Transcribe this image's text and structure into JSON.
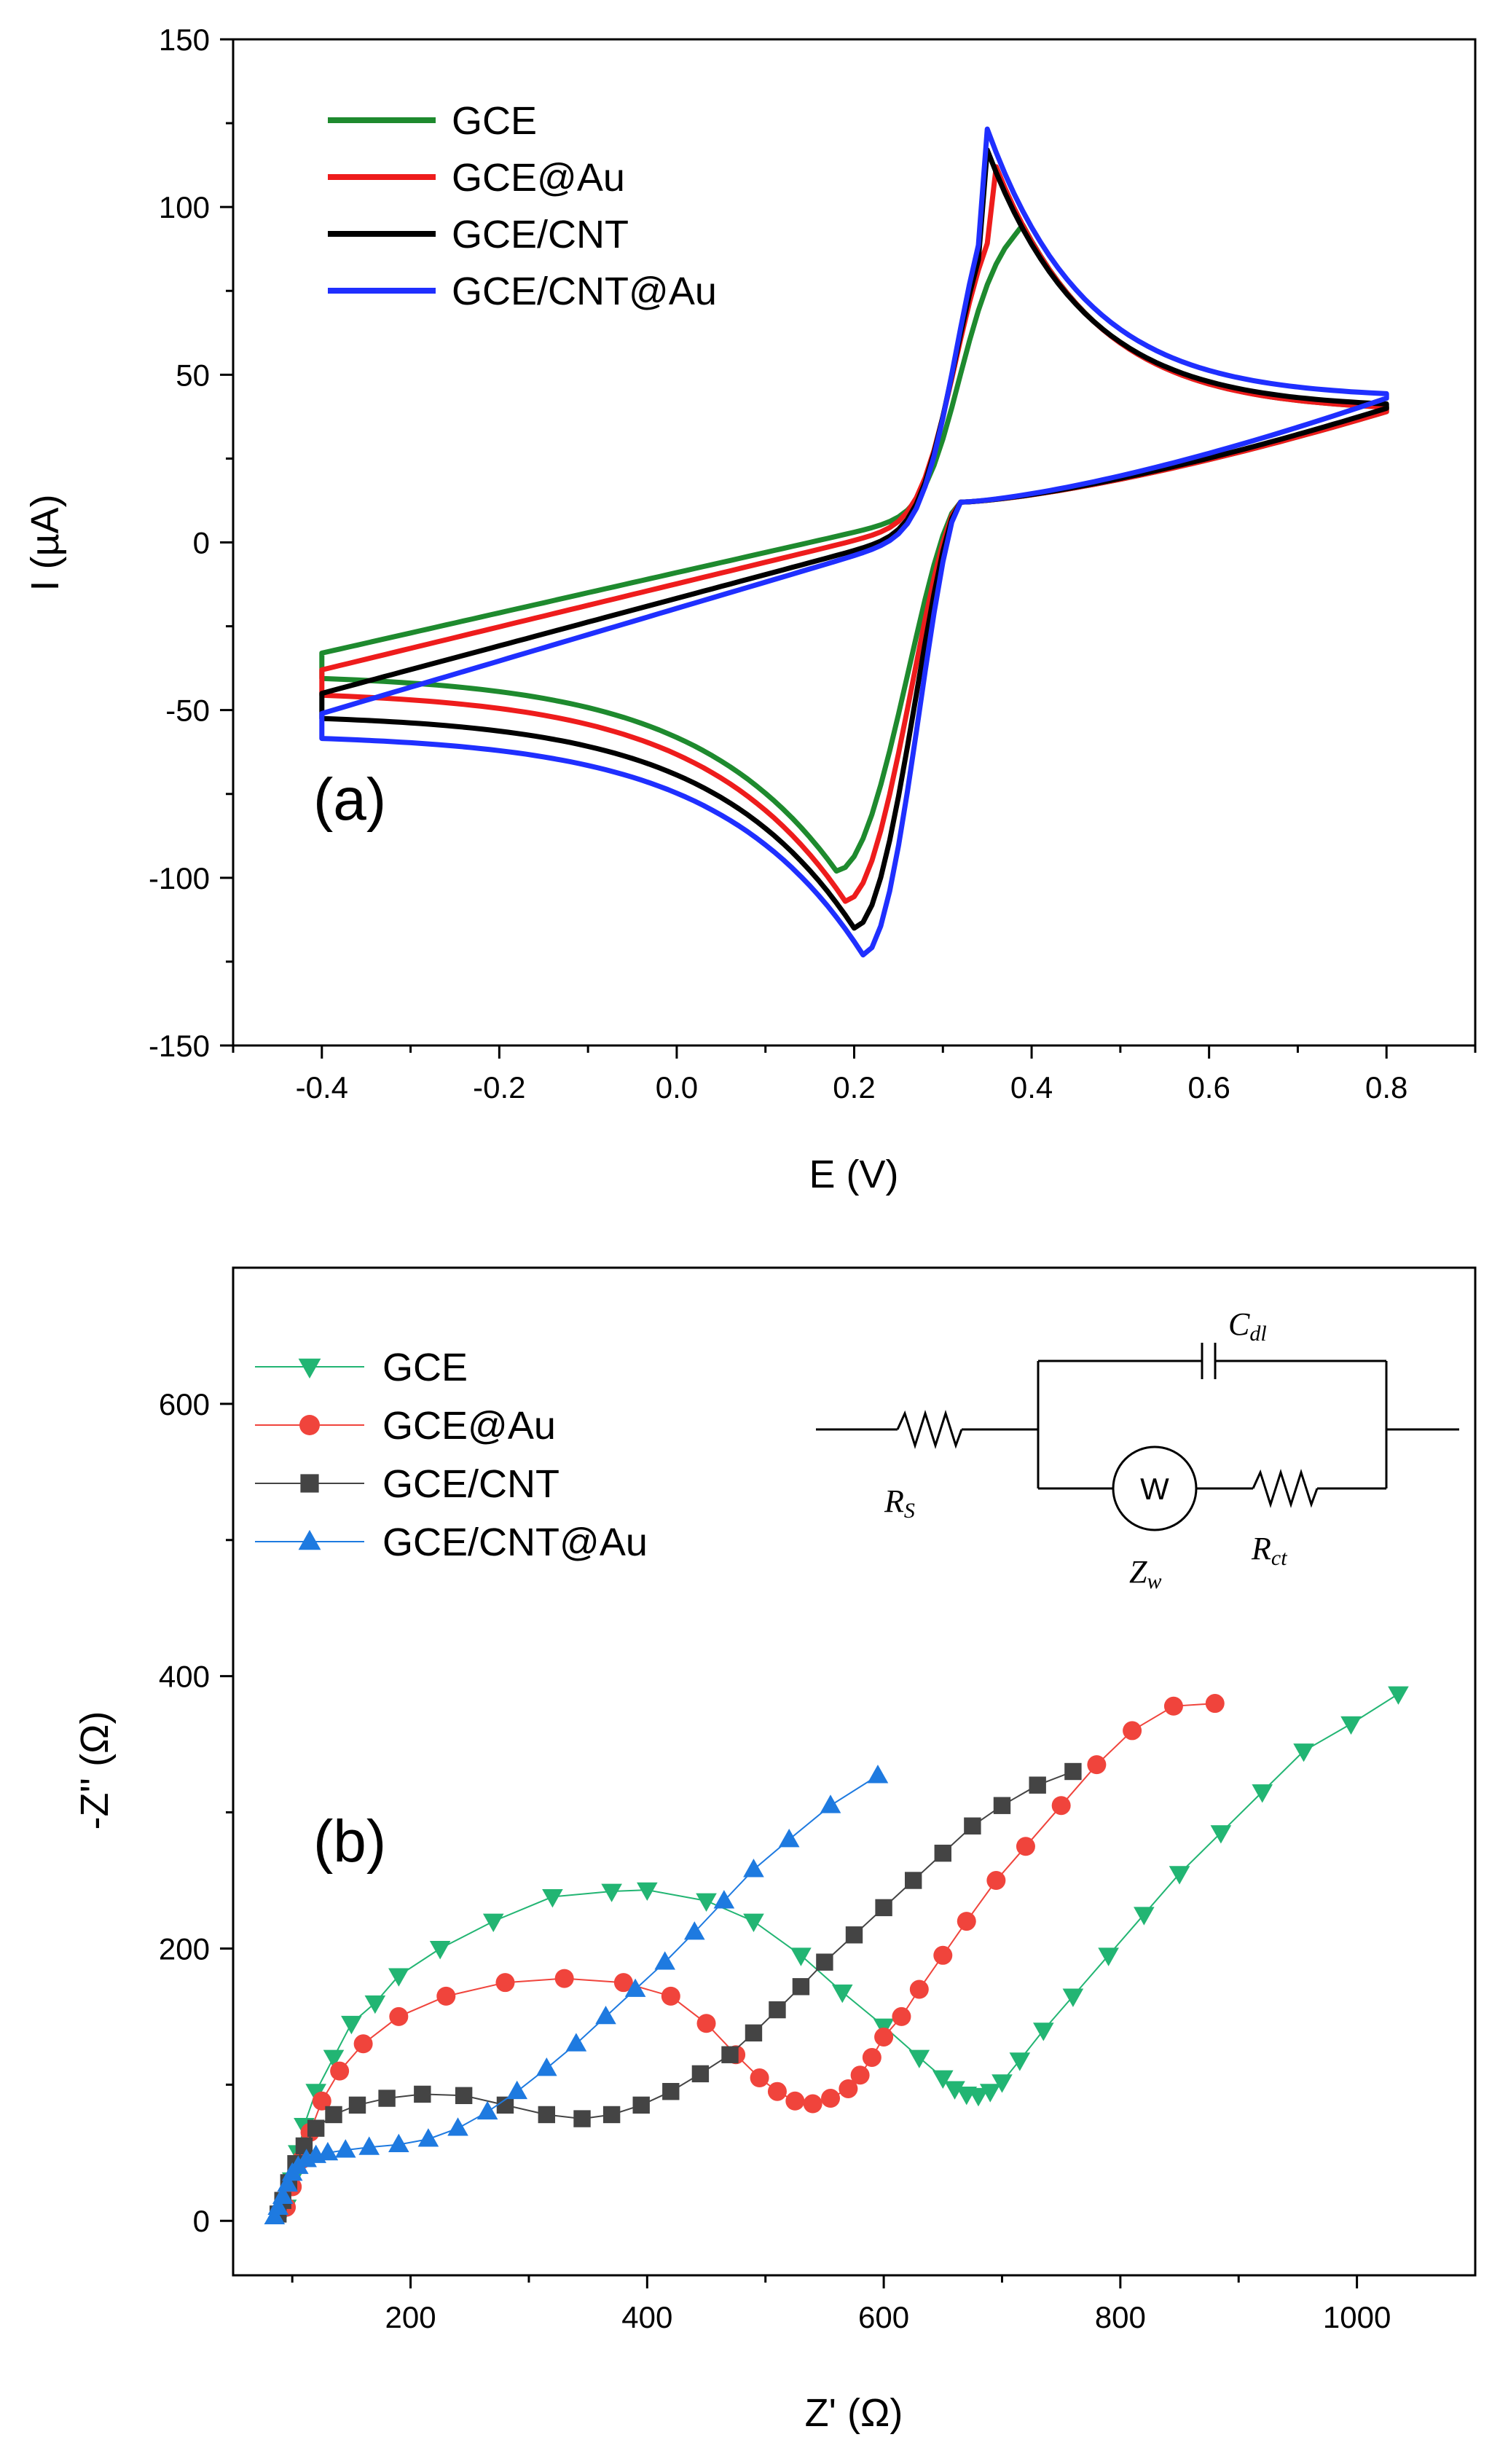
{
  "chart_data": [
    {
      "id": "cv",
      "type": "line",
      "panel_label": "(a)",
      "xlabel": "E (V)",
      "ylabel": "I (µA)",
      "xlim": [
        -0.5,
        0.9
      ],
      "ylim": [
        -150,
        150
      ],
      "xticks": [
        -0.4,
        -0.2,
        0.0,
        0.2,
        0.4,
        0.6,
        0.8
      ],
      "xtick_labels": [
        "-0.4",
        "-0.2",
        "0.0",
        "0.2",
        "0.4",
        "0.6",
        "0.8"
      ],
      "yticks": [
        -150,
        -100,
        -50,
        0,
        50,
        100,
        150
      ],
      "ytick_labels": [
        "-150",
        "-100",
        "-50",
        "0",
        "50",
        "100",
        "150"
      ],
      "legend_position": "top-left",
      "series": [
        {
          "name": "GCE",
          "color": "#1e8a2e",
          "Epa": 0.38,
          "Ipa": 100,
          "Epc": 0.18,
          "Ipc": -98,
          "I_start": -33,
          "I_end": 39
        },
        {
          "name": "GCE@Au",
          "color": "#ee1c1c",
          "Epa": 0.36,
          "Ipa": 112,
          "Epc": 0.19,
          "Ipc": -107,
          "I_start": -38,
          "I_end": 39
        },
        {
          "name": "GCE/CNT",
          "color": "#000000",
          "Epa": 0.35,
          "Ipa": 117,
          "Epc": 0.2,
          "Ipc": -115,
          "I_start": -45,
          "I_end": 40
        },
        {
          "name": "GCE/CNT@Au",
          "color": "#1f2fff",
          "Epa": 0.345,
          "Ipa": 127,
          "Epc": 0.21,
          "Ipc": -123,
          "I_start": -51,
          "I_end": 43
        }
      ]
    },
    {
      "id": "eis",
      "type": "scatter",
      "panel_label": "(b)",
      "xlabel": "Z' (Ω)",
      "ylabel": "-Z'' (Ω)",
      "xlim": [
        50,
        1100
      ],
      "ylim": [
        -40,
        700
      ],
      "xticks": [
        200,
        400,
        600,
        800,
        1000
      ],
      "xtick_labels": [
        "200",
        "400",
        "600",
        "800",
        "1000"
      ],
      "yticks": [
        0,
        200,
        400,
        600
      ],
      "ytick_labels": [
        "0",
        "200",
        "400",
        "600"
      ],
      "legend_position": "top-left",
      "series": [
        {
          "name": "GCE",
          "color": "#22b573",
          "marker": "triangle-down",
          "x": [
            95,
            100,
            105,
            110,
            120,
            135,
            150,
            170,
            190,
            225,
            270,
            320,
            370,
            400,
            450,
            490,
            530,
            565,
            600,
            630,
            650,
            660,
            670,
            680,
            690,
            700,
            715,
            735,
            760,
            790,
            820,
            850,
            885,
            920,
            955,
            995,
            1035
          ],
          "y": [
            10,
            30,
            50,
            70,
            95,
            120,
            145,
            160,
            180,
            200,
            220,
            238,
            242,
            243,
            235,
            220,
            195,
            168,
            143,
            120,
            105,
            97,
            93,
            92,
            95,
            102,
            118,
            140,
            165,
            195,
            225,
            255,
            285,
            315,
            345,
            365,
            387
          ]
        },
        {
          "name": "GCE@Au",
          "color": "#f0443c",
          "marker": "circle",
          "x": [
            95,
            100,
            108,
            115,
            125,
            140,
            160,
            190,
            230,
            280,
            330,
            380,
            420,
            450,
            475,
            495,
            510,
            525,
            540,
            555,
            570,
            580,
            590,
            600,
            615,
            630,
            650,
            670,
            695,
            720,
            750,
            780,
            810,
            845,
            880
          ],
          "y": [
            10,
            25,
            45,
            65,
            88,
            110,
            130,
            150,
            165,
            175,
            178,
            175,
            165,
            145,
            122,
            105,
            95,
            88,
            86,
            90,
            97,
            107,
            120,
            135,
            150,
            170,
            195,
            220,
            250,
            275,
            305,
            335,
            360,
            378,
            380
          ]
        },
        {
          "name": "GCE/CNT",
          "color": "#444444",
          "marker": "square",
          "x": [
            88,
            92,
            97,
            103,
            110,
            120,
            135,
            155,
            180,
            210,
            245,
            280,
            315,
            345,
            370,
            395,
            420,
            445,
            470,
            490,
            510,
            530,
            550,
            575,
            600,
            625,
            650,
            675,
            700,
            730,
            760
          ],
          "y": [
            5,
            15,
            28,
            42,
            55,
            68,
            78,
            85,
            90,
            93,
            92,
            85,
            78,
            75,
            78,
            85,
            95,
            108,
            122,
            138,
            155,
            172,
            190,
            210,
            230,
            250,
            270,
            290,
            305,
            320,
            330
          ]
        },
        {
          "name": "GCE/CNT@Au",
          "color": "#1e7ae0",
          "marker": "triangle-up",
          "x": [
            85,
            88,
            92,
            96,
            100,
            105,
            112,
            120,
            130,
            145,
            165,
            190,
            215,
            240,
            265,
            290,
            315,
            340,
            365,
            390,
            415,
            440,
            465,
            490,
            520,
            555,
            595
          ],
          "y": [
            3,
            10,
            18,
            27,
            35,
            40,
            45,
            48,
            50,
            52,
            54,
            56,
            60,
            68,
            80,
            95,
            112,
            130,
            150,
            170,
            190,
            212,
            235,
            258,
            280,
            305,
            327
          ]
        }
      ]
    }
  ],
  "circuit": {
    "labels": {
      "rs_main": "R",
      "rs_sub": "S",
      "cdl_main": "C",
      "cdl_sub": "dl",
      "rct_main": "R",
      "rct_sub": "ct",
      "zw_main": "Z",
      "zw_sub": "w",
      "w_symbol": "W"
    }
  }
}
